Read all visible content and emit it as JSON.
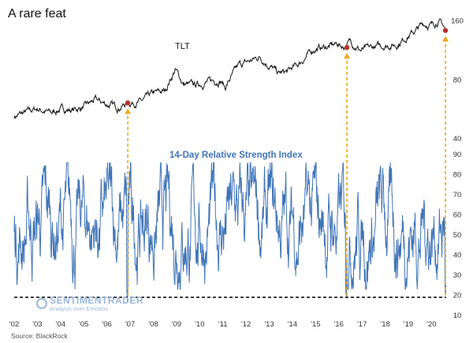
{
  "title": "A rare feat",
  "source": "Source: BlackRock",
  "watermark": {
    "name": "SENTIMENTRADER",
    "tagline": "Analysis over Emotion"
  },
  "colors": {
    "tlt": "#111111",
    "rsi": "#3f74b8",
    "marker": "#b8322a",
    "arrow": "#f0a818",
    "threshold": "#111111"
  },
  "chart_data": [
    {
      "type": "line",
      "series": [
        {
          "name": "TLT"
        }
      ],
      "y_ticks": [
        40,
        80,
        160
      ],
      "y_scale": "log",
      "ylim": [
        40,
        170
      ],
      "x_ticks": [
        "'02",
        "'03",
        "'04",
        "'05",
        "'06",
        "'07",
        "'08",
        "'09",
        "'10",
        "'11",
        "'12",
        "'13",
        "'14",
        "'15",
        "'16",
        "'17",
        "'18",
        "'19",
        "'20"
      ],
      "xlim": [
        2002.0,
        2020.7
      ],
      "anchors": [
        [
          2002.0,
          52
        ],
        [
          2002.6,
          55
        ],
        [
          2003.0,
          57
        ],
        [
          2003.6,
          54
        ],
        [
          2004.0,
          57
        ],
        [
          2004.5,
          56
        ],
        [
          2005.0,
          58
        ],
        [
          2005.5,
          63
        ],
        [
          2006.0,
          60
        ],
        [
          2006.5,
          58
        ],
        [
          2006.9,
          61
        ],
        [
          2007.5,
          62
        ],
        [
          2008.0,
          68
        ],
        [
          2008.5,
          70
        ],
        [
          2008.95,
          90
        ],
        [
          2009.3,
          76
        ],
        [
          2009.8,
          75
        ],
        [
          2010.3,
          78
        ],
        [
          2010.9,
          80
        ],
        [
          2011.1,
          73
        ],
        [
          2011.7,
          95
        ],
        [
          2012.2,
          100
        ],
        [
          2012.6,
          105
        ],
        [
          2012.95,
          96
        ],
        [
          2013.4,
          86
        ],
        [
          2013.8,
          88
        ],
        [
          2014.3,
          97
        ],
        [
          2014.95,
          115
        ],
        [
          2015.5,
          118
        ],
        [
          2015.95,
          122
        ],
        [
          2016.2,
          118
        ],
        [
          2016.5,
          126
        ],
        [
          2016.95,
          113
        ],
        [
          2017.6,
          118
        ],
        [
          2018.0,
          120
        ],
        [
          2018.5,
          121
        ],
        [
          2019.0,
          135
        ],
        [
          2019.3,
          142
        ],
        [
          2019.65,
          155
        ],
        [
          2020.0,
          152
        ],
        [
          2020.25,
          160
        ],
        [
          2020.45,
          155
        ],
        [
          2020.55,
          148
        ],
        [
          2020.6,
          143
        ]
      ],
      "markers": [
        {
          "x": 2006.9,
          "y": 61
        },
        {
          "x": 2016.35,
          "y": 117
        },
        {
          "x": 2020.6,
          "y": 143
        }
      ],
      "label_position": "upper-middle"
    },
    {
      "type": "line",
      "series": [
        {
          "name": "14-Day Relative Strength Index"
        }
      ],
      "y_ticks": [
        10,
        20,
        30,
        40,
        50,
        60,
        70,
        80,
        90
      ],
      "ylim": [
        10,
        90
      ],
      "x_ticks": [
        "'02",
        "'03",
        "'04",
        "'05",
        "'06",
        "'07",
        "'08",
        "'09",
        "'10",
        "'11",
        "'12",
        "'13",
        "'14",
        "'15",
        "'16",
        "'17",
        "'18",
        "'19",
        "'20"
      ],
      "xlim": [
        2002.0,
        2020.7
      ],
      "dips": [
        {
          "x": 2006.88,
          "y": 16
        },
        {
          "x": 2016.32,
          "y": 18
        },
        {
          "x": 2020.6,
          "y": 19
        }
      ],
      "threshold": 19,
      "value_range": [
        23,
        86
      ]
    }
  ]
}
